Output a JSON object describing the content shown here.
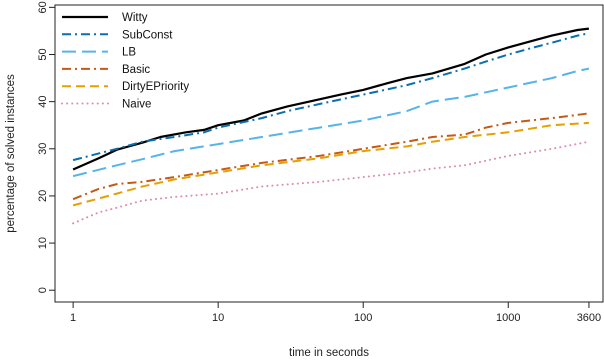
{
  "chart_data": {
    "type": "line",
    "title": "",
    "xlabel": "time in seconds",
    "ylabel": "percentage of solved instances",
    "xscale": "log",
    "xlim": [
      0.75,
      4500
    ],
    "ylim": [
      -2.5,
      60.5
    ],
    "xticks": [
      1,
      10,
      100,
      1000,
      3600
    ],
    "xtick_labels": [
      "1",
      "10",
      "100",
      "1000",
      "3600"
    ],
    "yticks": [
      0,
      10,
      20,
      30,
      40,
      50,
      60
    ],
    "ytick_labels": [
      "0",
      "10",
      "20",
      "30",
      "40",
      "50",
      "60"
    ],
    "grid": false,
    "legend_position": "top-left",
    "series": [
      {
        "name": "Witty",
        "color": "#000000",
        "dash": "solid",
        "points": [
          [
            1,
            25.6
          ],
          [
            1.5,
            28
          ],
          [
            2,
            29.8
          ],
          [
            3,
            31.3
          ],
          [
            4,
            32.5
          ],
          [
            6,
            33.5
          ],
          [
            8,
            34
          ],
          [
            10,
            35
          ],
          [
            15,
            36
          ],
          [
            20,
            37.5
          ],
          [
            30,
            39
          ],
          [
            50,
            40.5
          ],
          [
            70,
            41.5
          ],
          [
            100,
            42.5
          ],
          [
            150,
            44
          ],
          [
            200,
            45
          ],
          [
            300,
            46
          ],
          [
            500,
            48
          ],
          [
            700,
            50
          ],
          [
            1000,
            51.5
          ],
          [
            1500,
            53
          ],
          [
            2000,
            54
          ],
          [
            3000,
            55.2
          ],
          [
            3600,
            55.5
          ]
        ]
      },
      {
        "name": "SubConst",
        "color": "#0a6fb0",
        "dash": "dashdot",
        "points": [
          [
            1,
            27.6
          ],
          [
            2,
            30
          ],
          [
            3,
            31.5
          ],
          [
            5,
            32.5
          ],
          [
            8,
            33.5
          ],
          [
            10,
            34.5
          ],
          [
            20,
            36.5
          ],
          [
            30,
            38
          ],
          [
            50,
            39.5
          ],
          [
            100,
            41.5
          ],
          [
            200,
            43.5
          ],
          [
            300,
            45
          ],
          [
            500,
            47
          ],
          [
            700,
            48.5
          ],
          [
            1000,
            50
          ],
          [
            1500,
            51.5
          ],
          [
            2000,
            52.5
          ],
          [
            3000,
            54
          ],
          [
            3600,
            54.5
          ]
        ]
      },
      {
        "name": "LB",
        "color": "#56b4e9",
        "dash": "longdash",
        "points": [
          [
            1,
            24.2
          ],
          [
            2,
            26.5
          ],
          [
            3,
            27.8
          ],
          [
            5,
            29.5
          ],
          [
            10,
            31
          ],
          [
            20,
            32.5
          ],
          [
            50,
            34.5
          ],
          [
            100,
            36
          ],
          [
            200,
            38
          ],
          [
            300,
            40
          ],
          [
            500,
            41
          ],
          [
            1000,
            43
          ],
          [
            2000,
            45
          ],
          [
            3000,
            46.5
          ],
          [
            3600,
            47
          ]
        ]
      },
      {
        "name": "Basic",
        "color": "#c45a16",
        "dash": "dashdot",
        "points": [
          [
            1,
            19.3
          ],
          [
            1.5,
            21.5
          ],
          [
            2,
            22.5
          ],
          [
            3,
            23
          ],
          [
            5,
            24
          ],
          [
            10,
            25.5
          ],
          [
            20,
            27
          ],
          [
            50,
            28.5
          ],
          [
            100,
            30
          ],
          [
            200,
            31.5
          ],
          [
            300,
            32.5
          ],
          [
            500,
            33
          ],
          [
            700,
            34.5
          ],
          [
            1000,
            35.5
          ],
          [
            2000,
            36.5
          ],
          [
            3600,
            37.5
          ]
        ]
      },
      {
        "name": "DirtyEPriority",
        "color": "#e69f00",
        "dash": "dashed",
        "points": [
          [
            1,
            18
          ],
          [
            2,
            20.5
          ],
          [
            3,
            22
          ],
          [
            5,
            23.5
          ],
          [
            10,
            25
          ],
          [
            20,
            26.5
          ],
          [
            50,
            28
          ],
          [
            100,
            29.5
          ],
          [
            200,
            30.5
          ],
          [
            300,
            31.5
          ],
          [
            500,
            32.5
          ],
          [
            1000,
            33.5
          ],
          [
            2000,
            35
          ],
          [
            3600,
            35.5
          ]
        ]
      },
      {
        "name": "Naive",
        "color": "#dd8cb4",
        "dash": "dotted",
        "points": [
          [
            1,
            14.2
          ],
          [
            1.5,
            16.5
          ],
          [
            2,
            17.5
          ],
          [
            3,
            19
          ],
          [
            5,
            19.8
          ],
          [
            10,
            20.5
          ],
          [
            20,
            22
          ],
          [
            50,
            23
          ],
          [
            100,
            24
          ],
          [
            200,
            25
          ],
          [
            300,
            25.8
          ],
          [
            500,
            26.5
          ],
          [
            1000,
            28.5
          ],
          [
            2000,
            30
          ],
          [
            3600,
            31.5
          ]
        ]
      }
    ]
  }
}
